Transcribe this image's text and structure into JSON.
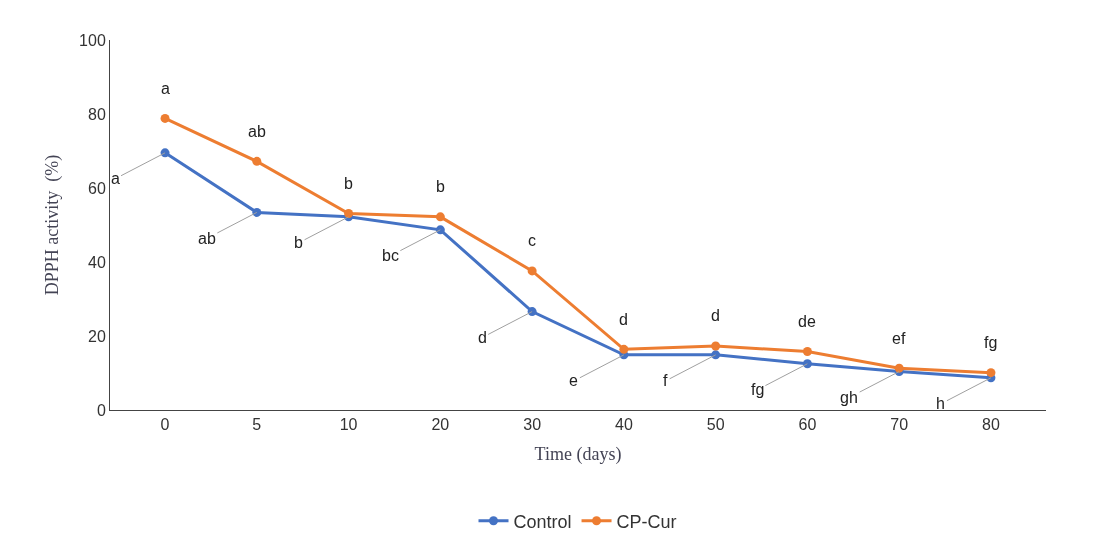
{
  "chart_data": {
    "type": "line",
    "xlabel": "Time (days)",
    "ylabel": "DPPH activity  (%)",
    "categories": [
      "0",
      "5",
      "10",
      "20",
      "30",
      "40",
      "50",
      "60",
      "70",
      "80"
    ],
    "series": [
      {
        "name": "Control",
        "color": "#4472c4",
        "values": [
          69.5,
          53.4,
          52.2,
          48.7,
          26.6,
          14.9,
          14.9,
          12.5,
          10.4,
          8.7
        ]
      },
      {
        "name": "CP-Cur",
        "color": "#ed7d31",
        "values": [
          78.8,
          67.2,
          53.1,
          52.2,
          37.6,
          16.4,
          17.3,
          15.8,
          11.3,
          10.1
        ]
      }
    ],
    "ylim": [
      0,
      100
    ],
    "yticks": [
      0,
      20,
      40,
      60,
      80,
      100
    ],
    "grid": false,
    "legend": "bottom",
    "marker": "circle",
    "line_style": "solid",
    "annotations": [
      {
        "text": "a",
        "x": "0",
        "y": 78.8
      },
      {
        "text": "ab",
        "x": "5",
        "y": 67.2
      },
      {
        "text": "b",
        "x": "10",
        "y": 53.1
      },
      {
        "text": "b",
        "x": "20",
        "y": 52.2
      },
      {
        "text": "c",
        "x": "30",
        "y": 37.6
      },
      {
        "text": "d",
        "x": "40",
        "y": 16.4
      },
      {
        "text": "d",
        "x": "50",
        "y": 17.3
      },
      {
        "text": "de",
        "x": "60",
        "y": 15.8
      },
      {
        "text": "ef",
        "x": "70",
        "y": 11.3
      },
      {
        "text": "fg",
        "x": "80",
        "y": 10.1
      },
      {
        "text": "a",
        "x": "0",
        "y": 69.5
      },
      {
        "text": "ab",
        "x": "5",
        "y": 53.4
      },
      {
        "text": "b",
        "x": "10",
        "y": 52.2
      },
      {
        "text": "bc",
        "x": "20",
        "y": 48.7
      },
      {
        "text": "d",
        "x": "30",
        "y": 26.6
      },
      {
        "text": "e",
        "x": "40",
        "y": 14.9
      },
      {
        "text": "f",
        "x": "50",
        "y": 14.9
      },
      {
        "text": "fg",
        "x": "60",
        "y": 12.5
      },
      {
        "text": "gh",
        "x": "70",
        "y": 10.4
      },
      {
        "text": "h",
        "x": "80",
        "y": 8.7
      }
    ]
  }
}
